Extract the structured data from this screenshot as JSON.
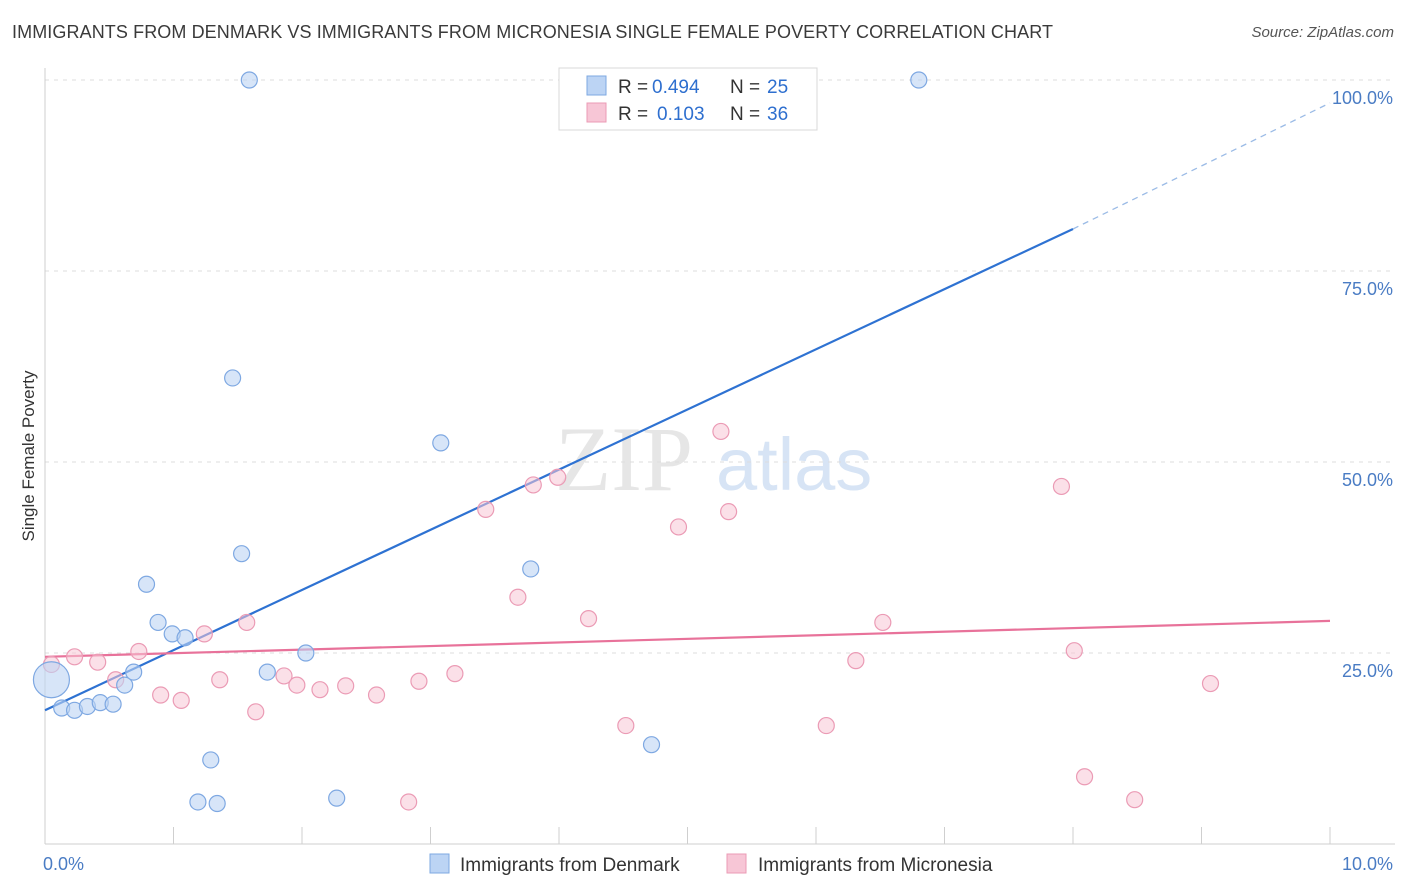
{
  "header": {
    "title": "IMMIGRANTS FROM DENMARK VS IMMIGRANTS FROM MICRONESIA SINGLE FEMALE POVERTY CORRELATION CHART",
    "source": "Source: ZipAtlas.com"
  },
  "watermark": {
    "zip": "ZIP",
    "atlas": "atlas"
  },
  "legend": {
    "rows": [
      {
        "r_label": "R =",
        "r_value": "0.494",
        "n_label": "N =",
        "n_value": "25"
      },
      {
        "r_label": "R =",
        "r_value": "0.103",
        "n_label": "N =",
        "n_value": "36"
      }
    ]
  },
  "bottom_legend": {
    "items": [
      {
        "label": "Immigrants from Denmark"
      },
      {
        "label": "Immigrants from Micronesia"
      }
    ]
  },
  "chart_data": {
    "type": "scatter",
    "title": "IMMIGRANTS FROM DENMARK VS IMMIGRANTS FROM MICRONESIA SINGLE FEMALE POVERTY CORRELATION CHART",
    "xlabel": "",
    "ylabel": "Single Female Poverty",
    "xlim": [
      0,
      10
    ],
    "ylim": [
      0,
      102
    ],
    "x_ticks": [
      0,
      10
    ],
    "x_tick_labels": [
      "0.0%",
      "10.0%"
    ],
    "y_ticks": [
      25,
      50,
      75,
      100
    ],
    "y_tick_labels": [
      "25.0%",
      "50.0%",
      "75.0%",
      "100.0%"
    ],
    "grid": "horizontal dashed",
    "legend_position": "top-center",
    "colors": {
      "denmark": "#2e72d2",
      "micronesia": "#e8729a",
      "denmark_fill": "#bcd4f4",
      "micronesia_fill": "#f7c6d6",
      "tick": "#4a7cc4"
    },
    "series": [
      {
        "name": "Immigrants from Denmark",
        "r": 0.494,
        "n": 25,
        "trend": {
          "x": [
            0,
            8.0
          ],
          "y": [
            17.5,
            80.5
          ],
          "extended_to": [
            10.0,
            97.0
          ]
        },
        "points": [
          {
            "x": 0.05,
            "y": 21.5,
            "big": true
          },
          {
            "x": 0.13,
            "y": 17.8
          },
          {
            "x": 0.23,
            "y": 17.5
          },
          {
            "x": 0.33,
            "y": 18.0
          },
          {
            "x": 0.43,
            "y": 18.5
          },
          {
            "x": 0.53,
            "y": 18.3
          },
          {
            "x": 0.62,
            "y": 20.8
          },
          {
            "x": 0.69,
            "y": 22.5
          },
          {
            "x": 0.79,
            "y": 34.0
          },
          {
            "x": 0.88,
            "y": 29.0
          },
          {
            "x": 0.99,
            "y": 27.5
          },
          {
            "x": 1.09,
            "y": 27.0
          },
          {
            "x": 1.29,
            "y": 11.0
          },
          {
            "x": 1.19,
            "y": 5.5
          },
          {
            "x": 1.34,
            "y": 5.3
          },
          {
            "x": 1.46,
            "y": 61.0
          },
          {
            "x": 1.53,
            "y": 38.0
          },
          {
            "x": 1.59,
            "y": 100.0
          },
          {
            "x": 1.73,
            "y": 22.5
          },
          {
            "x": 2.03,
            "y": 25.0
          },
          {
            "x": 2.27,
            "y": 6.0
          },
          {
            "x": 3.08,
            "y": 52.5
          },
          {
            "x": 3.78,
            "y": 36.0
          },
          {
            "x": 4.72,
            "y": 13.0
          },
          {
            "x": 6.8,
            "y": 100.0
          }
        ]
      },
      {
        "name": "Immigrants from Micronesia",
        "r": 0.103,
        "n": 36,
        "trend": {
          "x": [
            0,
            10.0
          ],
          "y": [
            24.5,
            29.2
          ]
        },
        "points": [
          {
            "x": 0.05,
            "y": 23.5
          },
          {
            "x": 0.23,
            "y": 24.5
          },
          {
            "x": 0.41,
            "y": 23.8
          },
          {
            "x": 0.55,
            "y": 21.5
          },
          {
            "x": 0.73,
            "y": 25.2
          },
          {
            "x": 0.9,
            "y": 19.5
          },
          {
            "x": 1.06,
            "y": 18.8
          },
          {
            "x": 1.24,
            "y": 27.5
          },
          {
            "x": 1.36,
            "y": 21.5
          },
          {
            "x": 1.57,
            "y": 29.0
          },
          {
            "x": 1.64,
            "y": 17.3
          },
          {
            "x": 1.86,
            "y": 22.0
          },
          {
            "x": 1.96,
            "y": 20.8
          },
          {
            "x": 2.14,
            "y": 20.2
          },
          {
            "x": 2.34,
            "y": 20.7
          },
          {
            "x": 2.58,
            "y": 19.5
          },
          {
            "x": 2.83,
            "y": 5.5
          },
          {
            "x": 2.91,
            "y": 21.3
          },
          {
            "x": 3.19,
            "y": 22.3
          },
          {
            "x": 3.43,
            "y": 43.8
          },
          {
            "x": 3.68,
            "y": 32.3
          },
          {
            "x": 3.8,
            "y": 47.0
          },
          {
            "x": 3.99,
            "y": 48.0
          },
          {
            "x": 4.23,
            "y": 29.5
          },
          {
            "x": 4.52,
            "y": 15.5
          },
          {
            "x": 4.93,
            "y": 41.5
          },
          {
            "x": 5.26,
            "y": 54.0
          },
          {
            "x": 5.32,
            "y": 43.5
          },
          {
            "x": 6.08,
            "y": 15.5
          },
          {
            "x": 6.31,
            "y": 24.0
          },
          {
            "x": 6.52,
            "y": 29.0
          },
          {
            "x": 7.91,
            "y": 46.8
          },
          {
            "x": 8.01,
            "y": 25.3
          },
          {
            "x": 8.09,
            "y": 8.8
          },
          {
            "x": 8.48,
            "y": 5.8
          },
          {
            "x": 9.07,
            "y": 21.0
          }
        ]
      }
    ]
  }
}
